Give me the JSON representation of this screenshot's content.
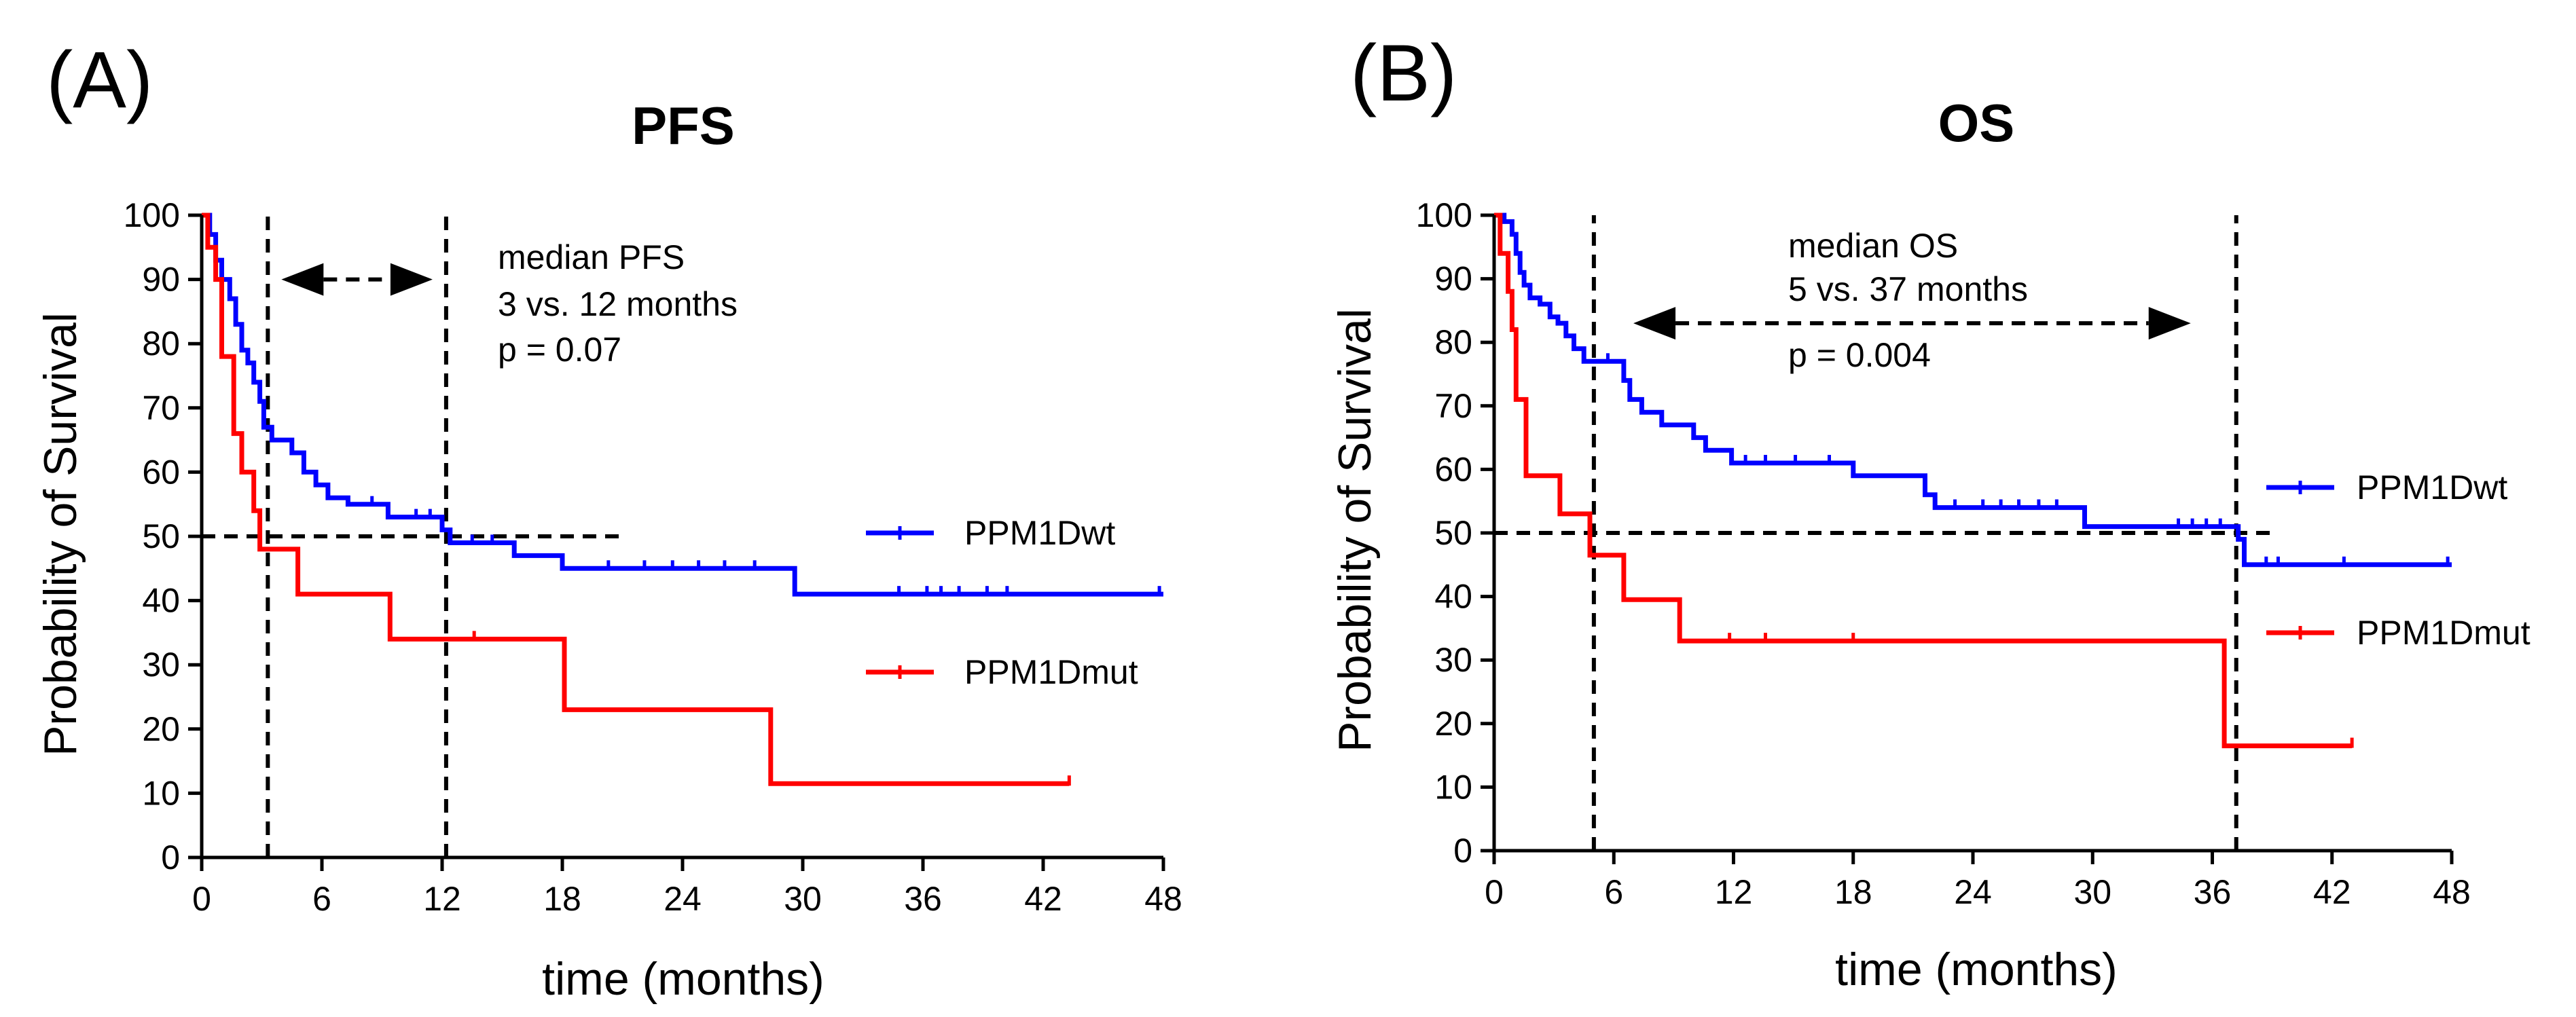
{
  "figure": {
    "panels": [
      {
        "label": "(A)",
        "title": "PFS"
      },
      {
        "label": "(B)",
        "title": "OS"
      }
    ]
  },
  "colors": {
    "wt": "#0000ff",
    "mut": "#ff0000",
    "reference": "#000000"
  },
  "chart_data": [
    {
      "type": "line",
      "subtype": "kaplan-meier step",
      "title": "PFS",
      "xlabel": "time (months)",
      "ylabel": "Probability of Survival",
      "xlim": [
        0,
        48
      ],
      "ylim": [
        0,
        100
      ],
      "xticks": [
        0,
        6,
        12,
        18,
        24,
        30,
        36,
        42,
        48
      ],
      "yticks": [
        0,
        10,
        20,
        30,
        40,
        50,
        60,
        70,
        80,
        90,
        100
      ],
      "grid": false,
      "legend_position": "right",
      "annotations": [
        "median PFS",
        "3 vs. 12 months",
        "p = 0.07"
      ],
      "reference_lines": {
        "horizontal_y": 50,
        "horizontal_x_range": [
          0,
          21
        ],
        "vertical_x": [
          3.3,
          12.2
        ],
        "arrow_between_x": [
          3.3,
          12.2
        ],
        "arrow_y": 90
      },
      "series": [
        {
          "name": "PPM1Dwt",
          "points": [
            [
              0,
              100
            ],
            [
              0.4,
              100
            ],
            [
              0.4,
              97
            ],
            [
              0.7,
              97
            ],
            [
              0.7,
              93
            ],
            [
              1.0,
              93
            ],
            [
              1.0,
              90
            ],
            [
              1.4,
              90
            ],
            [
              1.4,
              87
            ],
            [
              1.7,
              87
            ],
            [
              1.7,
              83
            ],
            [
              2.0,
              83
            ],
            [
              2.0,
              79
            ],
            [
              2.3,
              79
            ],
            [
              2.3,
              77
            ],
            [
              2.6,
              77
            ],
            [
              2.6,
              74
            ],
            [
              2.9,
              74
            ],
            [
              2.9,
              71
            ],
            [
              3.1,
              71
            ],
            [
              3.1,
              67
            ],
            [
              3.5,
              67
            ],
            [
              3.5,
              65
            ],
            [
              4.5,
              65
            ],
            [
              4.5,
              63
            ],
            [
              5.1,
              63
            ],
            [
              5.1,
              60
            ],
            [
              5.7,
              60
            ],
            [
              5.7,
              58
            ],
            [
              6.3,
              58
            ],
            [
              6.3,
              56
            ],
            [
              7.3,
              56
            ],
            [
              7.3,
              55
            ],
            [
              9.3,
              55
            ],
            [
              9.3,
              53
            ],
            [
              12.0,
              53
            ],
            [
              12.0,
              51
            ],
            [
              12.4,
              51
            ],
            [
              12.4,
              49
            ],
            [
              15.6,
              49
            ],
            [
              15.6,
              47
            ],
            [
              18.0,
              47
            ],
            [
              18.0,
              45
            ],
            [
              29.6,
              45
            ],
            [
              29.6,
              41
            ],
            [
              48,
              41
            ]
          ],
          "censored": [
            [
              8.5,
              55
            ],
            [
              10.7,
              53
            ],
            [
              11.4,
              53
            ],
            [
              13.5,
              49
            ],
            [
              14.5,
              49
            ],
            [
              20.3,
              45
            ],
            [
              22.1,
              45
            ],
            [
              23.5,
              45
            ],
            [
              24.8,
              45
            ],
            [
              26.1,
              45
            ],
            [
              27.6,
              45
            ],
            [
              34.8,
              41
            ],
            [
              36.2,
              41
            ],
            [
              36.9,
              41
            ],
            [
              37.8,
              41
            ],
            [
              39.2,
              41
            ],
            [
              40.2,
              41
            ],
            [
              47.8,
              41
            ]
          ]
        },
        {
          "name": "PPM1Dmut",
          "points": [
            [
              0,
              100
            ],
            [
              0.3,
              100
            ],
            [
              0.3,
              95
            ],
            [
              0.7,
              95
            ],
            [
              0.7,
              90
            ],
            [
              1.0,
              90
            ],
            [
              1.0,
              78
            ],
            [
              1.6,
              78
            ],
            [
              1.6,
              66
            ],
            [
              2.0,
              66
            ],
            [
              2.0,
              60
            ],
            [
              2.6,
              60
            ],
            [
              2.6,
              54
            ],
            [
              2.9,
              54
            ],
            [
              2.9,
              48
            ],
            [
              4.8,
              48
            ],
            [
              4.8,
              41
            ],
            [
              9.4,
              41
            ],
            [
              9.4,
              34
            ],
            [
              18.1,
              34
            ],
            [
              18.1,
              23
            ],
            [
              28.4,
              23
            ],
            [
              28.4,
              11.5
            ],
            [
              43.3,
              11.5
            ]
          ],
          "censored": [
            [
              13.6,
              34
            ],
            [
              43.3,
              11.5
            ]
          ]
        }
      ]
    },
    {
      "type": "line",
      "subtype": "kaplan-meier step",
      "title": "OS",
      "xlabel": "time (months)",
      "ylabel": "Probability of Survival",
      "xlim": [
        0,
        48
      ],
      "ylim": [
        0,
        100
      ],
      "xticks": [
        0,
        6,
        12,
        18,
        24,
        30,
        36,
        42,
        48
      ],
      "yticks": [
        0,
        10,
        20,
        30,
        40,
        50,
        60,
        70,
        80,
        90,
        100
      ],
      "grid": false,
      "legend_position": "right",
      "annotations": [
        "median OS",
        "5 vs. 37 months",
        "p = 0.004"
      ],
      "reference_lines": {
        "horizontal_y": 50,
        "horizontal_x_range": [
          0,
          39
        ],
        "vertical_x": [
          5.0,
          37.2
        ],
        "arrow_between_x": [
          6.3,
          35.6
        ],
        "arrow_y": 83
      },
      "series": [
        {
          "name": "PPM1Dwt",
          "points": [
            [
              0,
              100
            ],
            [
              0.5,
              100
            ],
            [
              0.5,
              99
            ],
            [
              0.9,
              99
            ],
            [
              0.9,
              97
            ],
            [
              1.1,
              97
            ],
            [
              1.1,
              94
            ],
            [
              1.3,
              94
            ],
            [
              1.3,
              91
            ],
            [
              1.5,
              91
            ],
            [
              1.5,
              89
            ],
            [
              1.8,
              89
            ],
            [
              1.8,
              87
            ],
            [
              2.3,
              87
            ],
            [
              2.3,
              86
            ],
            [
              2.8,
              86
            ],
            [
              2.8,
              84
            ],
            [
              3.2,
              84
            ],
            [
              3.2,
              83
            ],
            [
              3.6,
              83
            ],
            [
              3.6,
              81
            ],
            [
              4.0,
              81
            ],
            [
              4.0,
              79
            ],
            [
              4.5,
              79
            ],
            [
              4.5,
              77
            ],
            [
              6.5,
              77
            ],
            [
              6.5,
              74
            ],
            [
              6.8,
              74
            ],
            [
              6.8,
              71
            ],
            [
              7.4,
              71
            ],
            [
              7.4,
              69
            ],
            [
              8.4,
              69
            ],
            [
              8.4,
              67
            ],
            [
              10.0,
              67
            ],
            [
              10.0,
              65
            ],
            [
              10.6,
              65
            ],
            [
              10.6,
              63
            ],
            [
              11.9,
              63
            ],
            [
              11.9,
              61
            ],
            [
              18.0,
              61
            ],
            [
              18.0,
              59
            ],
            [
              21.6,
              59
            ],
            [
              21.6,
              56
            ],
            [
              22.1,
              56
            ],
            [
              22.1,
              54
            ],
            [
              29.6,
              54
            ],
            [
              29.6,
              51
            ],
            [
              37.3,
              51
            ],
            [
              37.3,
              49
            ],
            [
              37.6,
              49
            ],
            [
              37.6,
              45
            ],
            [
              48,
              45
            ]
          ],
          "censored": [
            [
              5.7,
              77
            ],
            [
              12.6,
              61
            ],
            [
              13.6,
              61
            ],
            [
              15.1,
              61
            ],
            [
              16.8,
              61
            ],
            [
              23.1,
              54
            ],
            [
              24.5,
              54
            ],
            [
              25.4,
              54
            ],
            [
              26.3,
              54
            ],
            [
              27.3,
              54
            ],
            [
              28.2,
              54
            ],
            [
              34.3,
              51
            ],
            [
              35.0,
              51
            ],
            [
              35.7,
              51
            ],
            [
              36.4,
              51
            ],
            [
              38.7,
              45
            ],
            [
              39.3,
              45
            ],
            [
              42.6,
              45
            ],
            [
              47.8,
              45
            ]
          ]
        },
        {
          "name": "PPM1Dmut",
          "points": [
            [
              0,
              100
            ],
            [
              0.3,
              100
            ],
            [
              0.3,
              94
            ],
            [
              0.7,
              94
            ],
            [
              0.7,
              88
            ],
            [
              0.9,
              88
            ],
            [
              0.9,
              82
            ],
            [
              1.1,
              82
            ],
            [
              1.1,
              71
            ],
            [
              1.6,
              71
            ],
            [
              1.6,
              59
            ],
            [
              3.3,
              59
            ],
            [
              3.3,
              53
            ],
            [
              4.8,
              53
            ],
            [
              4.8,
              46.5
            ],
            [
              6.5,
              46.5
            ],
            [
              6.5,
              39.5
            ],
            [
              9.3,
              39.5
            ],
            [
              9.3,
              33
            ],
            [
              36.6,
              33
            ],
            [
              36.6,
              16.5
            ],
            [
              43.0,
              16.5
            ]
          ],
          "censored": [
            [
              11.8,
              33
            ],
            [
              13.6,
              33
            ],
            [
              18.0,
              33
            ],
            [
              43.0,
              16.5
            ]
          ]
        }
      ]
    }
  ]
}
